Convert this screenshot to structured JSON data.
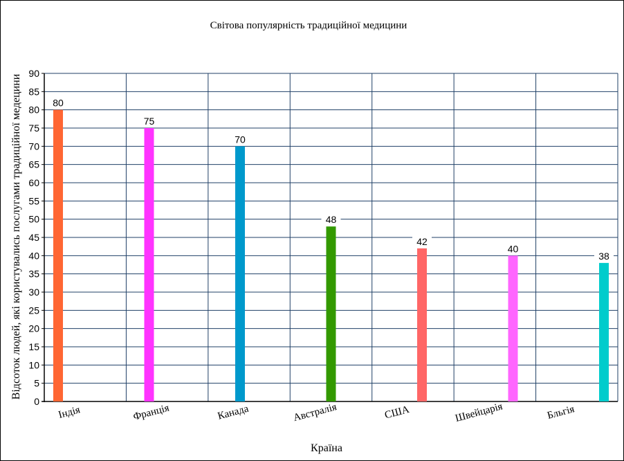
{
  "chart_data": {
    "type": "bar",
    "title": "Світова популярність традиційної медицини",
    "xlabel": "Країна",
    "ylabel": "Відсоток людей, які користувались послугами традиційної медецини",
    "ylim": [
      0,
      90
    ],
    "ytick_step": 5,
    "grid": true,
    "categories": [
      "Індія",
      "Франція",
      "Канада",
      "Австралія",
      "США",
      "Швейцарія",
      "Бльгія"
    ],
    "values": [
      80,
      75,
      70,
      48,
      42,
      40,
      38
    ],
    "colors": [
      "#ff6633",
      "#ff33ff",
      "#0099cc",
      "#339900",
      "#ff6666",
      "#ff66ff",
      "#00cccc"
    ],
    "grid_color": "#1f3f66"
  }
}
